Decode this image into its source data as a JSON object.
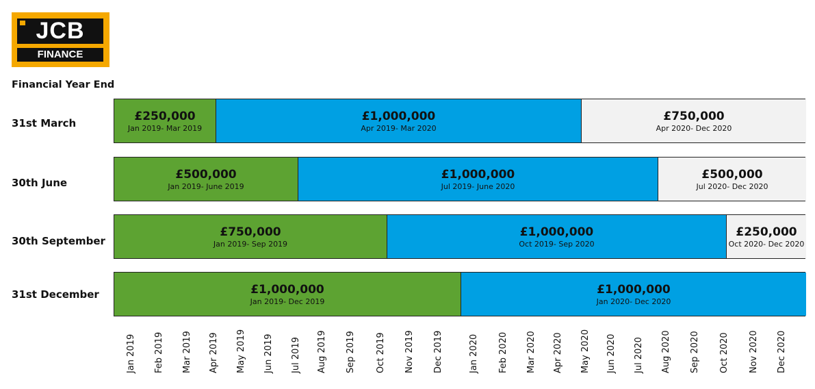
{
  "logo": {
    "brand": "JCB",
    "sub": "FINANCE"
  },
  "chart_data": {
    "type": "gantt",
    "title": "Financial Year End",
    "colors": {
      "green": "#5da332",
      "blue": "#00a0e3",
      "grey": "#f2f2f2"
    },
    "rows": [
      {
        "label": "31st March",
        "segments": [
          {
            "amount": "£250,000",
            "period": "Jan 2019- Mar 2019",
            "color": "green"
          },
          {
            "amount": "£1,000,000",
            "period": "Apr 2019- Mar 2020",
            "color": "blue"
          },
          {
            "amount": "£750,000",
            "period": "Apr 2020- Dec 2020",
            "color": "grey"
          }
        ]
      },
      {
        "label": "30th June",
        "segments": [
          {
            "amount": "£500,000",
            "period": "Jan 2019- June 2019",
            "color": "green"
          },
          {
            "amount": "£1,000,000",
            "period": "Jul 2019- June 2020",
            "color": "blue"
          },
          {
            "amount": "£500,000",
            "period": "Jul 2020- Dec 2020",
            "color": "grey"
          }
        ]
      },
      {
        "label": "30th September",
        "segments": [
          {
            "amount": "£750,000",
            "period": "Jan 2019- Sep 2019",
            "color": "green"
          },
          {
            "amount": "£1,000,000",
            "period": "Oct 2019- Sep 2020",
            "color": "blue"
          },
          {
            "amount": "£250,000",
            "period": "Oct 2020- Dec 2020",
            "color": "grey"
          }
        ]
      },
      {
        "label": "31st December",
        "segments": [
          {
            "amount": "£1,000,000",
            "period": "Jan 2019- Dec 2019",
            "color": "green"
          },
          {
            "amount": "£1,000,000",
            "period": "Jan 2020- Dec 2020",
            "color": "blue"
          }
        ]
      }
    ],
    "x_ticks": [
      "Jan 2019",
      "Feb 2019",
      "Mar 2019",
      "Apr 2019",
      "May 2019",
      "Jun 2019",
      "Jul 2019",
      "Aug 2019",
      "Sep 2019",
      "Oct 2019",
      "Nov 2019",
      "Dec 2019",
      "Jan 2020",
      "Feb 2020",
      "Mar 2020",
      "Apr 2020",
      "May 2020",
      "Jun 2020",
      "Jul 2020",
      "Aug 2020",
      "Sep 2020",
      "Oct 2020",
      "Nov 2020",
      "Dec 2020"
    ]
  }
}
